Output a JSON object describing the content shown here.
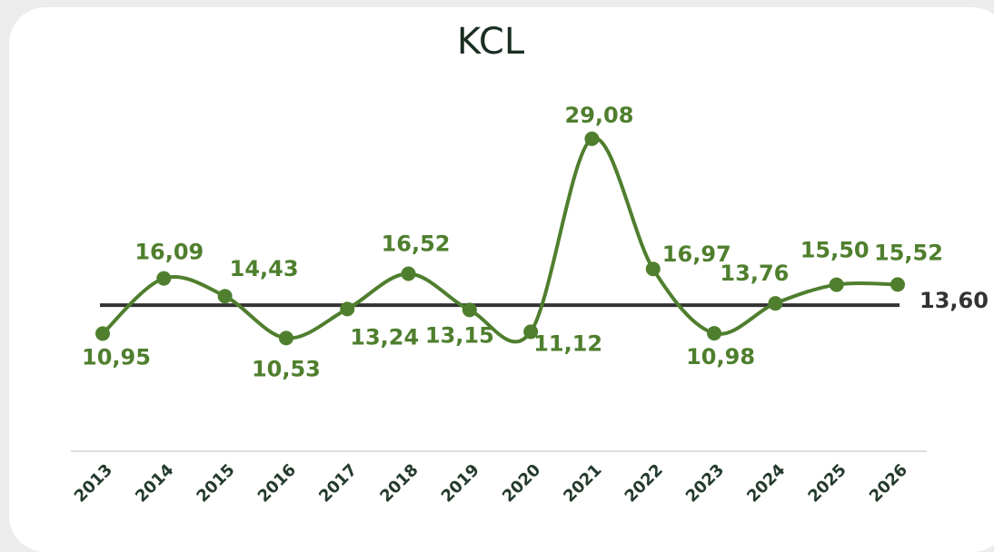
{
  "chart_data": {
    "type": "line",
    "title": "KCL",
    "categories": [
      "2013",
      "2014",
      "2015",
      "2016",
      "2017",
      "2018",
      "2019",
      "2020",
      "2021",
      "2022",
      "2023",
      "2024",
      "2025",
      "2026"
    ],
    "series": [
      {
        "color": "#4f7f2e",
        "values": [
          10.95,
          16.09,
          14.43,
          10.53,
          13.24,
          16.52,
          13.15,
          11.12,
          29.08,
          16.97,
          10.98,
          13.76,
          15.5,
          15.52
        ],
        "value_labels": [
          "10,95",
          "16,09",
          "14,43",
          "10,53",
          "13,24",
          "16,52",
          "13,15",
          "11,12",
          "29,08",
          "16,97",
          "10,98",
          "13,76",
          "15,50",
          "15,52"
        ]
      }
    ],
    "reference_line": {
      "value": 13.6,
      "label": "13,60",
      "color": "#333333"
    },
    "ylim": [
      0,
      30
    ]
  }
}
